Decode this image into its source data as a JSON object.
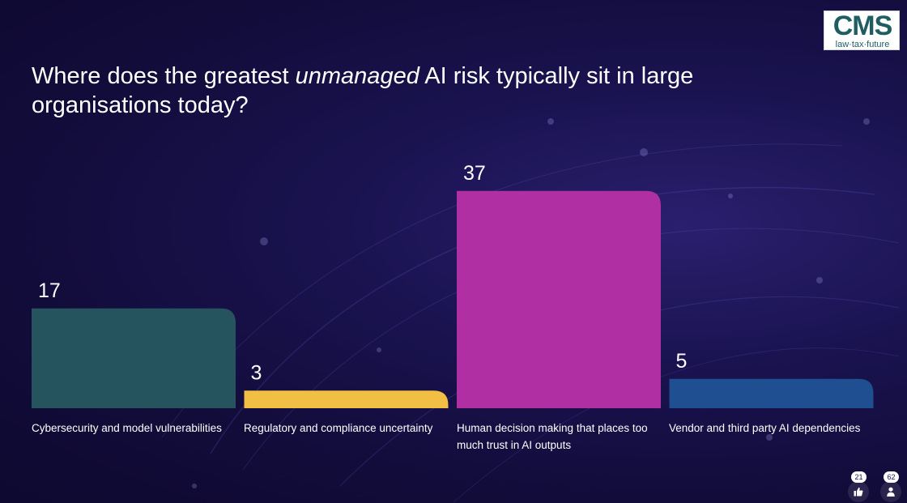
{
  "logo": {
    "mark": "CMS",
    "tagline": "law·tax·future"
  },
  "title": {
    "before": "Where does the greatest ",
    "emphasis": "unmanaged",
    "after": " AI risk typically sit in large organisations today?"
  },
  "chart_data": {
    "type": "bar",
    "categories": [
      "Cybersecurity and model vulnerabilities",
      "Regulatory and compliance uncertainty",
      "Human decision making that places too much trust in AI outputs",
      "Vendor and third party AI dependencies"
    ],
    "values": [
      17,
      3,
      37,
      5
    ],
    "colors": [
      "#26545e",
      "#f2bf45",
      "#b02fa2",
      "#1f4e91"
    ],
    "ylim": [
      0,
      40
    ],
    "grid": false,
    "legend": "none"
  },
  "footer": {
    "likes_count": "21",
    "participants_count": "62",
    "like_icon": "thumbs-up-icon",
    "participants_icon": "person-icon"
  }
}
